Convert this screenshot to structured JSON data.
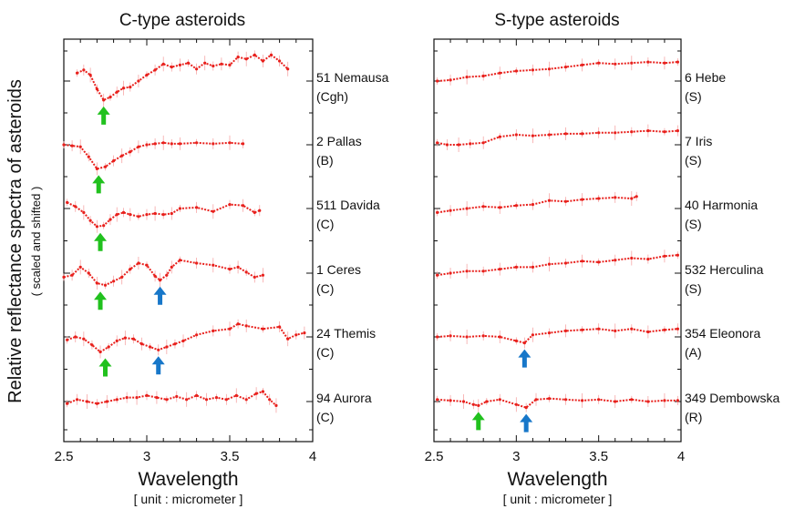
{
  "figure": {
    "ylabel": "Relative reflectance spectra of asteroids",
    "ysub": "( scaled and shifted )"
  },
  "chart_data": [
    {
      "type": "line",
      "title": "C-type asteroids",
      "xlabel": "Wavelength",
      "xunit": "[ unit : micrometer ]",
      "xlim": [
        2.5,
        4.0
      ],
      "xticks": [
        "2.5",
        "3",
        "3.5",
        "4"
      ],
      "colors": {
        "line": "#e8201c",
        "errorbar": "#f6a6a6",
        "arrow_green": "#21c11e",
        "arrow_blue": "#1777c9"
      },
      "series": [
        {
          "label": "51 Nemausa",
          "class": "(Cgh)",
          "x": [
            2.58,
            2.62,
            2.66,
            2.7,
            2.74,
            2.78,
            2.82,
            2.86,
            2.9,
            2.95,
            3.0,
            3.05,
            3.1,
            3.15,
            3.2,
            3.25,
            3.3,
            3.35,
            3.4,
            3.45,
            3.5,
            3.55,
            3.6,
            3.65,
            3.7,
            3.75,
            3.8,
            3.85
          ],
          "y": [
            0.4,
            0.55,
            0.3,
            -0.4,
            -0.95,
            -0.8,
            -0.55,
            -0.35,
            -0.3,
            0.0,
            0.3,
            0.55,
            0.85,
            0.7,
            0.8,
            0.9,
            0.6,
            0.9,
            0.75,
            0.85,
            0.8,
            1.2,
            1.1,
            1.3,
            1.0,
            1.3,
            1.0,
            0.6
          ],
          "arrows": [
            {
              "x": 2.74,
              "color": "green"
            }
          ]
        },
        {
          "label": "2 Pallas",
          "class": "(B)",
          "x": [
            2.5,
            2.55,
            2.6,
            2.65,
            2.7,
            2.75,
            2.8,
            2.85,
            2.9,
            2.95,
            3.0,
            3.05,
            3.1,
            3.15,
            3.2,
            3.3,
            3.4,
            3.5,
            3.58
          ],
          "y": [
            0.0,
            -0.05,
            -0.1,
            -0.6,
            -1.2,
            -1.1,
            -0.8,
            -0.55,
            -0.35,
            -0.1,
            0.0,
            0.05,
            0.1,
            0.05,
            0.05,
            0.1,
            0.05,
            0.1,
            0.05
          ],
          "arrows": [
            {
              "x": 2.71,
              "color": "green"
            }
          ]
        },
        {
          "label": "511 Davida",
          "class": "(C)",
          "x": [
            2.52,
            2.57,
            2.62,
            2.66,
            2.7,
            2.74,
            2.78,
            2.82,
            2.86,
            2.9,
            2.95,
            3.0,
            3.05,
            3.1,
            3.15,
            3.2,
            3.3,
            3.4,
            3.5,
            3.58,
            3.65,
            3.68
          ],
          "y": [
            0.3,
            0.1,
            -0.2,
            -0.6,
            -0.9,
            -0.85,
            -0.55,
            -0.3,
            -0.2,
            -0.3,
            -0.4,
            -0.3,
            -0.25,
            -0.3,
            -0.25,
            0.0,
            0.05,
            -0.15,
            0.2,
            0.15,
            -0.2,
            -0.1
          ],
          "arrows": [
            {
              "x": 2.72,
              "color": "green"
            }
          ]
        },
        {
          "label": "1 Ceres",
          "class": "(C)",
          "x": [
            2.5,
            2.55,
            2.6,
            2.65,
            2.7,
            2.75,
            2.8,
            2.85,
            2.9,
            2.95,
            3.0,
            3.05,
            3.08,
            3.12,
            3.15,
            3.2,
            3.3,
            3.4,
            3.5,
            3.55,
            3.6,
            3.65,
            3.7
          ],
          "y": [
            -0.2,
            -0.1,
            0.3,
            0.0,
            -0.5,
            -0.6,
            -0.4,
            -0.2,
            0.2,
            0.5,
            0.4,
            -0.15,
            -0.35,
            -0.1,
            0.3,
            0.65,
            0.5,
            0.4,
            0.2,
            0.3,
            0.05,
            -0.2,
            -0.1
          ],
          "arrows": [
            {
              "x": 2.72,
              "color": "green"
            },
            {
              "x": 3.08,
              "color": "blue"
            }
          ]
        },
        {
          "label": "24 Themis",
          "class": "(C)",
          "x": [
            2.52,
            2.57,
            2.62,
            2.67,
            2.72,
            2.77,
            2.82,
            2.87,
            2.92,
            2.97,
            3.02,
            3.07,
            3.12,
            3.17,
            3.22,
            3.3,
            3.4,
            3.5,
            3.55,
            3.6,
            3.7,
            3.8,
            3.85,
            3.9,
            3.95
          ],
          "y": [
            -0.15,
            0.0,
            -0.1,
            -0.4,
            -0.75,
            -0.5,
            -0.2,
            -0.05,
            -0.1,
            -0.35,
            -0.5,
            -0.65,
            -0.5,
            -0.35,
            -0.2,
            0.1,
            0.3,
            0.4,
            0.65,
            0.55,
            0.4,
            0.5,
            -0.1,
            0.1,
            0.2
          ],
          "arrows": [
            {
              "x": 2.75,
              "color": "green"
            },
            {
              "x": 3.07,
              "color": "blue"
            }
          ]
        },
        {
          "label": "94 Aurora",
          "class": "(C)",
          "x": [
            2.52,
            2.58,
            2.64,
            2.7,
            2.76,
            2.82,
            2.88,
            2.94,
            3.0,
            3.06,
            3.12,
            3.18,
            3.24,
            3.3,
            3.36,
            3.42,
            3.48,
            3.54,
            3.6,
            3.66,
            3.7,
            3.74,
            3.78
          ],
          "y": [
            -0.1,
            0.1,
            0.0,
            -0.1,
            0.0,
            0.1,
            0.2,
            0.2,
            0.3,
            0.2,
            0.1,
            0.25,
            0.1,
            0.3,
            0.1,
            0.2,
            0.1,
            0.3,
            0.1,
            0.4,
            0.5,
            0.1,
            -0.2
          ],
          "arrows": []
        }
      ]
    },
    {
      "type": "line",
      "title": "S-type asteroids",
      "xlabel": "Wavelength",
      "xunit": "[ unit : micrometer ]",
      "xlim": [
        2.5,
        4.0
      ],
      "xticks": [
        "2.5",
        "3",
        "3.5",
        "4"
      ],
      "colors": {
        "line": "#e8201c",
        "errorbar": "#f6a6a6",
        "arrow_green": "#21c11e",
        "arrow_blue": "#1777c9"
      },
      "series": [
        {
          "label": "6 Hebe",
          "class": "(S)",
          "x": [
            2.52,
            2.6,
            2.7,
            2.8,
            2.9,
            3.0,
            3.1,
            3.2,
            3.3,
            3.4,
            3.5,
            3.6,
            3.7,
            3.8,
            3.9,
            3.98
          ],
          "y": [
            0.0,
            0.05,
            0.2,
            0.25,
            0.4,
            0.5,
            0.55,
            0.6,
            0.7,
            0.8,
            0.9,
            0.85,
            0.9,
            0.95,
            0.9,
            0.95
          ],
          "arrows": []
        },
        {
          "label": "7 Iris",
          "class": "(S)",
          "x": [
            2.52,
            2.58,
            2.65,
            2.72,
            2.8,
            2.9,
            3.0,
            3.1,
            3.2,
            3.3,
            3.4,
            3.5,
            3.6,
            3.7,
            3.8,
            3.9,
            3.98
          ],
          "y": [
            0.1,
            0.0,
            0.0,
            0.05,
            0.1,
            0.4,
            0.5,
            0.45,
            0.5,
            0.55,
            0.55,
            0.6,
            0.6,
            0.65,
            0.7,
            0.65,
            0.7
          ],
          "arrows": []
        },
        {
          "label": "40 Harmonia",
          "class": "(S)",
          "x": [
            2.52,
            2.6,
            2.7,
            2.8,
            2.9,
            3.0,
            3.1,
            3.2,
            3.3,
            3.4,
            3.5,
            3.6,
            3.7,
            3.73
          ],
          "y": [
            -0.2,
            -0.1,
            0.0,
            0.1,
            0.05,
            0.15,
            0.2,
            0.4,
            0.35,
            0.45,
            0.5,
            0.55,
            0.5,
            0.6
          ],
          "arrows": []
        },
        {
          "label": "532 Herculina",
          "class": "(S)",
          "x": [
            2.52,
            2.6,
            2.7,
            2.8,
            2.9,
            3.0,
            3.1,
            3.2,
            3.3,
            3.4,
            3.5,
            3.6,
            3.7,
            3.8,
            3.9,
            3.98
          ],
          "y": [
            -0.1,
            0.0,
            0.1,
            0.1,
            0.2,
            0.3,
            0.3,
            0.45,
            0.5,
            0.6,
            0.55,
            0.65,
            0.75,
            0.7,
            0.85,
            0.9
          ],
          "arrows": []
        },
        {
          "label": "354 Eleonora",
          "class": "(A)",
          "x": [
            2.52,
            2.6,
            2.7,
            2.8,
            2.9,
            3.0,
            3.05,
            3.1,
            3.2,
            3.3,
            3.4,
            3.5,
            3.6,
            3.7,
            3.8,
            3.9,
            3.98
          ],
          "y": [
            0.0,
            0.05,
            0.0,
            0.05,
            0.0,
            -0.2,
            -0.3,
            0.1,
            0.2,
            0.3,
            0.35,
            0.4,
            0.3,
            0.4,
            0.25,
            0.35,
            0.4
          ],
          "arrows": [
            {
              "x": 3.05,
              "color": "blue"
            }
          ]
        },
        {
          "label": "349 Dembowska",
          "class": "(R)",
          "x": [
            2.52,
            2.6,
            2.68,
            2.74,
            2.77,
            2.82,
            2.9,
            3.0,
            3.06,
            3.12,
            3.2,
            3.3,
            3.4,
            3.5,
            3.6,
            3.7,
            3.8,
            3.9,
            3.98
          ],
          "y": [
            0.1,
            0.05,
            0.0,
            -0.15,
            -0.2,
            0.0,
            0.1,
            -0.15,
            -0.3,
            0.1,
            0.15,
            0.1,
            0.05,
            0.1,
            0.0,
            0.1,
            0.0,
            0.05,
            0.05
          ],
          "arrows": [
            {
              "x": 2.77,
              "color": "green"
            },
            {
              "x": 3.06,
              "color": "blue"
            }
          ]
        }
      ]
    }
  ]
}
